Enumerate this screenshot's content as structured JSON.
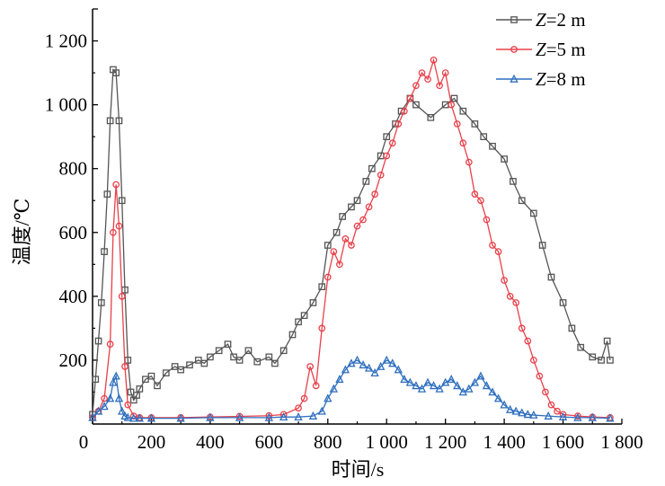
{
  "chart_data": {
    "type": "line",
    "title": "",
    "xlabel": "时间/s",
    "ylabel": "温度/℃",
    "xlim": [
      0,
      1800
    ],
    "ylim": [
      0,
      1300
    ],
    "x_ticks": [
      0,
      200,
      400,
      600,
      800,
      1000,
      1200,
      1400,
      1600,
      1800
    ],
    "x_tick_labels": [
      "0",
      "200",
      "400",
      "600",
      "800",
      "1 000",
      "1 200",
      "1 400",
      "1 600",
      "1 800"
    ],
    "y_ticks": [
      200,
      400,
      600,
      800,
      1000,
      1200
    ],
    "y_tick_labels": [
      "200",
      "400",
      "600",
      "800",
      "1 000",
      "1 200"
    ],
    "legend_position": "top-right",
    "series": [
      {
        "name": "Z=2 m",
        "legend_var": "Z",
        "legend_rest": "=2 m",
        "color": "#555555",
        "marker": "square",
        "x": [
          0,
          10,
          20,
          30,
          40,
          50,
          60,
          70,
          80,
          90,
          100,
          110,
          120,
          130,
          140,
          150,
          160,
          180,
          200,
          220,
          250,
          280,
          300,
          330,
          360,
          380,
          400,
          430,
          460,
          480,
          500,
          530,
          560,
          600,
          620,
          650,
          680,
          700,
          720,
          750,
          780,
          800,
          830,
          850,
          880,
          900,
          930,
          950,
          980,
          1000,
          1030,
          1050,
          1080,
          1100,
          1150,
          1200,
          1230,
          1260,
          1300,
          1330,
          1360,
          1400,
          1430,
          1460,
          1500,
          1530,
          1560,
          1600,
          1630,
          1660,
          1700,
          1730,
          1750,
          1760
        ],
        "y": [
          30,
          140,
          260,
          380,
          540,
          720,
          950,
          1110,
          1100,
          950,
          700,
          420,
          200,
          100,
          75,
          90,
          110,
          140,
          150,
          120,
          160,
          180,
          170,
          185,
          200,
          190,
          210,
          230,
          250,
          210,
          200,
          230,
          195,
          210,
          190,
          230,
          280,
          320,
          340,
          380,
          430,
          560,
          600,
          650,
          680,
          700,
          760,
          800,
          840,
          900,
          940,
          980,
          1020,
          1000,
          960,
          1000,
          1020,
          980,
          940,
          900,
          870,
          830,
          760,
          700,
          660,
          560,
          460,
          380,
          300,
          240,
          210,
          200,
          260,
          200
        ]
      },
      {
        "name": "Z=5 m",
        "legend_var": "Z",
        "legend_rest": "=5 m",
        "color": "#e8404a",
        "marker": "circle",
        "x": [
          0,
          20,
          40,
          60,
          70,
          80,
          90,
          100,
          110,
          120,
          140,
          160,
          200,
          300,
          400,
          500,
          600,
          650,
          700,
          720,
          740,
          760,
          780,
          800,
          820,
          840,
          860,
          880,
          900,
          920,
          940,
          960,
          980,
          1000,
          1020,
          1040,
          1060,
          1080,
          1100,
          1120,
          1140,
          1160,
          1180,
          1200,
          1220,
          1240,
          1260,
          1280,
          1300,
          1320,
          1340,
          1360,
          1380,
          1400,
          1420,
          1440,
          1460,
          1480,
          1500,
          1520,
          1540,
          1560,
          1580,
          1600,
          1650,
          1700,
          1760
        ],
        "y": [
          20,
          40,
          80,
          250,
          600,
          750,
          620,
          400,
          180,
          60,
          25,
          20,
          20,
          20,
          22,
          24,
          26,
          30,
          50,
          80,
          180,
          120,
          300,
          460,
          540,
          500,
          580,
          560,
          620,
          640,
          680,
          720,
          780,
          840,
          880,
          940,
          980,
          1020,
          1060,
          1100,
          1080,
          1140,
          1060,
          1100,
          1000,
          940,
          880,
          820,
          720,
          700,
          640,
          560,
          540,
          450,
          400,
          380,
          300,
          260,
          200,
          150,
          100,
          60,
          40,
          30,
          25,
          22,
          20
        ]
      },
      {
        "name": "Z=8 m",
        "legend_var": "Z",
        "legend_rest": "=8 m",
        "color": "#2e6fbf",
        "marker": "triangle",
        "x": [
          0,
          20,
          40,
          60,
          70,
          80,
          90,
          100,
          110,
          120,
          140,
          160,
          200,
          300,
          400,
          500,
          600,
          650,
          700,
          750,
          780,
          800,
          820,
          840,
          860,
          880,
          900,
          920,
          940,
          960,
          980,
          1000,
          1020,
          1040,
          1060,
          1080,
          1100,
          1120,
          1140,
          1160,
          1180,
          1200,
          1220,
          1240,
          1260,
          1280,
          1300,
          1320,
          1340,
          1360,
          1380,
          1400,
          1420,
          1440,
          1460,
          1480,
          1500,
          1550,
          1600,
          1650,
          1700,
          1760
        ],
        "y": [
          20,
          40,
          55,
          80,
          130,
          150,
          80,
          40,
          25,
          20,
          18,
          18,
          18,
          18,
          20,
          20,
          20,
          22,
          22,
          25,
          40,
          80,
          110,
          140,
          170,
          190,
          200,
          185,
          175,
          160,
          180,
          200,
          190,
          170,
          140,
          130,
          120,
          110,
          130,
          120,
          110,
          130,
          140,
          120,
          100,
          110,
          130,
          150,
          120,
          100,
          80,
          60,
          45,
          40,
          35,
          30,
          28,
          25,
          22,
          20,
          20,
          18
        ]
      }
    ]
  }
}
